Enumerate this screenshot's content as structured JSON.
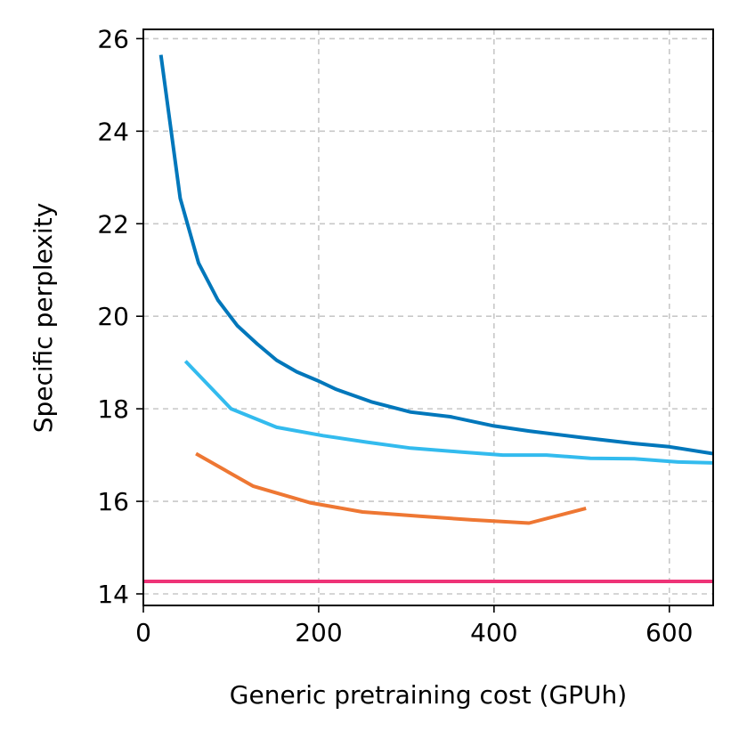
{
  "chart_data": {
    "type": "line",
    "title": "",
    "xlabel": "Generic pretraining cost (GPUh)",
    "ylabel": "Specific perplexity",
    "xlim": [
      0,
      650
    ],
    "ylim": [
      13.75,
      26.2
    ],
    "xticks": [
      0,
      200,
      400,
      600
    ],
    "yticks": [
      14,
      16,
      18,
      20,
      22,
      24,
      26
    ],
    "grid": true,
    "series": [
      {
        "name": "series-dark-blue",
        "color": "#0077BB",
        "x": [
          20,
          42,
          63,
          85,
          107,
          130,
          152,
          175,
          200,
          220,
          260,
          305,
          350,
          400,
          440,
          500,
          560,
          600,
          650
        ],
        "y": [
          25.65,
          22.55,
          21.15,
          20.35,
          19.8,
          19.4,
          19.05,
          18.8,
          18.6,
          18.42,
          18.15,
          17.93,
          17.83,
          17.63,
          17.52,
          17.38,
          17.25,
          17.18,
          17.03
        ]
      },
      {
        "name": "series-light-blue",
        "color": "#33BBEE",
        "x": [
          48,
          100,
          152,
          205,
          255,
          305,
          360,
          410,
          460,
          510,
          560,
          610,
          650
        ],
        "y": [
          19.03,
          18.0,
          17.6,
          17.42,
          17.28,
          17.15,
          17.07,
          17.0,
          17.0,
          16.93,
          16.92,
          16.85,
          16.83
        ]
      },
      {
        "name": "series-orange",
        "color": "#EE7733",
        "x": [
          60,
          125,
          190,
          250,
          315,
          375,
          440,
          505
        ],
        "y": [
          17.03,
          16.33,
          15.97,
          15.77,
          15.68,
          15.6,
          15.53,
          15.85
        ]
      },
      {
        "name": "series-baseline",
        "color": "#EE3377",
        "x": [
          0,
          650
        ],
        "y": [
          14.27,
          14.27
        ]
      }
    ]
  }
}
